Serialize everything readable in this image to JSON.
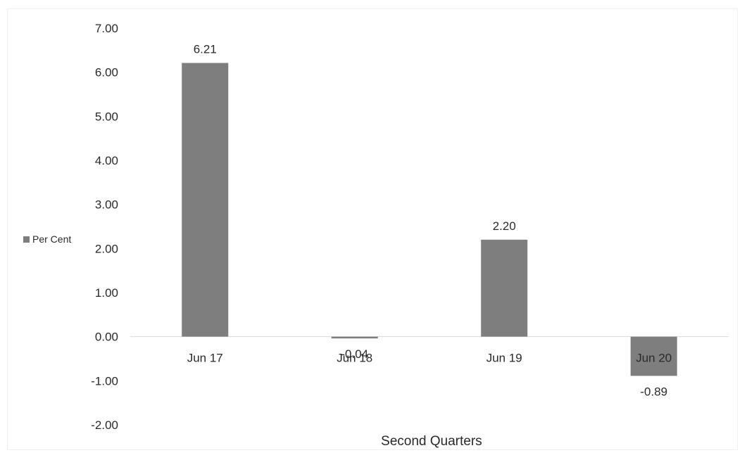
{
  "chart_data": {
    "type": "bar",
    "categories": [
      "Jun 17",
      "Jun 18",
      "Jun 19",
      "Jun 20"
    ],
    "series": [
      {
        "name": "Per Cent",
        "values": [
          6.21,
          -0.04,
          2.2,
          -0.89
        ],
        "color": "#7e7e7e"
      }
    ],
    "data_labels": [
      "6.21",
      "-0.04",
      "2.20",
      "-0.89"
    ],
    "xlabel": "Second Quarters",
    "ylabel": "",
    "ylim": [
      -2,
      7
    ],
    "yticks": [
      7,
      6,
      5,
      4,
      3,
      2,
      1,
      0,
      -1,
      -2
    ],
    "ytick_labels": [
      "7.00",
      "6.00",
      "5.00",
      "4.00",
      "3.00",
      "2.00",
      "1.00",
      "0.00",
      "-1.00",
      "-2.00"
    ],
    "grid": false,
    "legend_position": "left"
  }
}
